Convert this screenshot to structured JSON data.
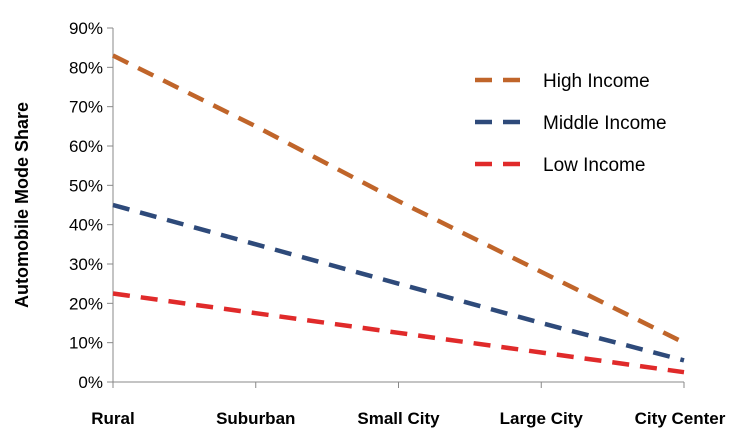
{
  "chart_data": {
    "type": "line",
    "title": "",
    "xlabel": "",
    "ylabel": "Automobile Mode Share",
    "categories": [
      "Rural",
      "Suburban",
      "Small City",
      "Large City",
      "City Center"
    ],
    "y_ticks": [
      "0%",
      "10%",
      "20%",
      "30%",
      "40%",
      "50%",
      "60%",
      "70%",
      "80%",
      "90%"
    ],
    "ylim": [
      0,
      90
    ],
    "grid": false,
    "legend_position": "top-right",
    "series": [
      {
        "name": "High Income",
        "color": "#C0652A",
        "values": [
          83,
          65,
          46,
          28,
          10
        ]
      },
      {
        "name": "Middle Income",
        "color": "#2E4A7A",
        "values": [
          45,
          35,
          25,
          15,
          5.5
        ]
      },
      {
        "name": "Low Income",
        "color": "#E02A2A",
        "values": [
          22.5,
          17.5,
          12.5,
          7.5,
          2.5
        ]
      }
    ]
  }
}
